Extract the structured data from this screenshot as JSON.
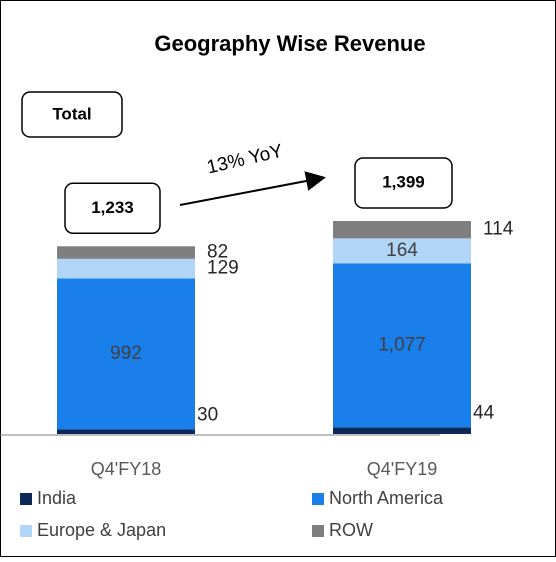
{
  "chart_data": {
    "type": "stacked_bar",
    "title": "Geography Wise Revenue",
    "total_caption": "Total",
    "annotation": "13% YoY",
    "categories": [
      "Q4'FY18",
      "Q4'FY19"
    ],
    "totals": [
      1233,
      1399
    ],
    "total_labels": [
      "1,233",
      "1,399"
    ],
    "series": [
      {
        "name": "India",
        "color": "#0b2a57",
        "values": [
          30,
          44
        ]
      },
      {
        "name": "North America",
        "color": "#1a7fea",
        "values": [
          992,
          1077
        ],
        "value_labels": [
          "992",
          "1,077"
        ]
      },
      {
        "name": "Europe & Japan",
        "color": "#b0d5f7",
        "values": [
          129,
          164
        ]
      },
      {
        "name": "ROW",
        "color": "#7f7f7f",
        "values": [
          82,
          114
        ]
      }
    ]
  }
}
